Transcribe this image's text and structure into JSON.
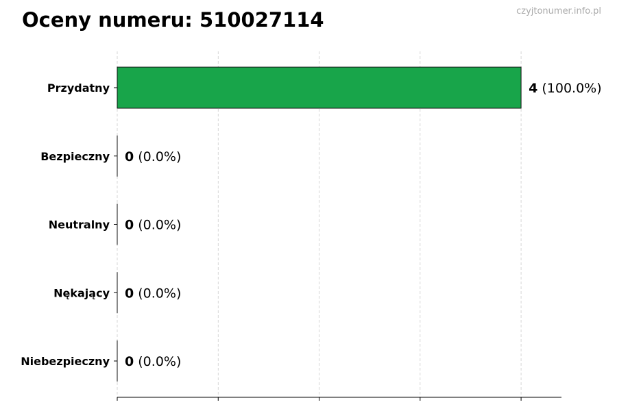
{
  "chart_data": {
    "type": "bar",
    "orientation": "horizontal",
    "title": "Oceny numeru: 510027114",
    "watermark": "czyjtonumer.info.pl",
    "categories": [
      "Przydatny",
      "Bezpieczny",
      "Neutralny",
      "Nękający",
      "Niebezpieczny"
    ],
    "values": [
      4,
      0,
      0,
      0,
      0
    ],
    "percents": [
      "100.0%",
      "0.0%",
      "0.0%",
      "0.0%",
      "0.0%"
    ],
    "xlim": [
      0,
      4.4
    ],
    "xticks": [
      0,
      1,
      2,
      3,
      4
    ],
    "xtick_labels_shown": false,
    "grid": "x-dashed",
    "colors": {
      "bar": "#18a54a",
      "edge": "#111111",
      "grid": "#cccccc"
    },
    "xlabel": "",
    "ylabel": ""
  }
}
